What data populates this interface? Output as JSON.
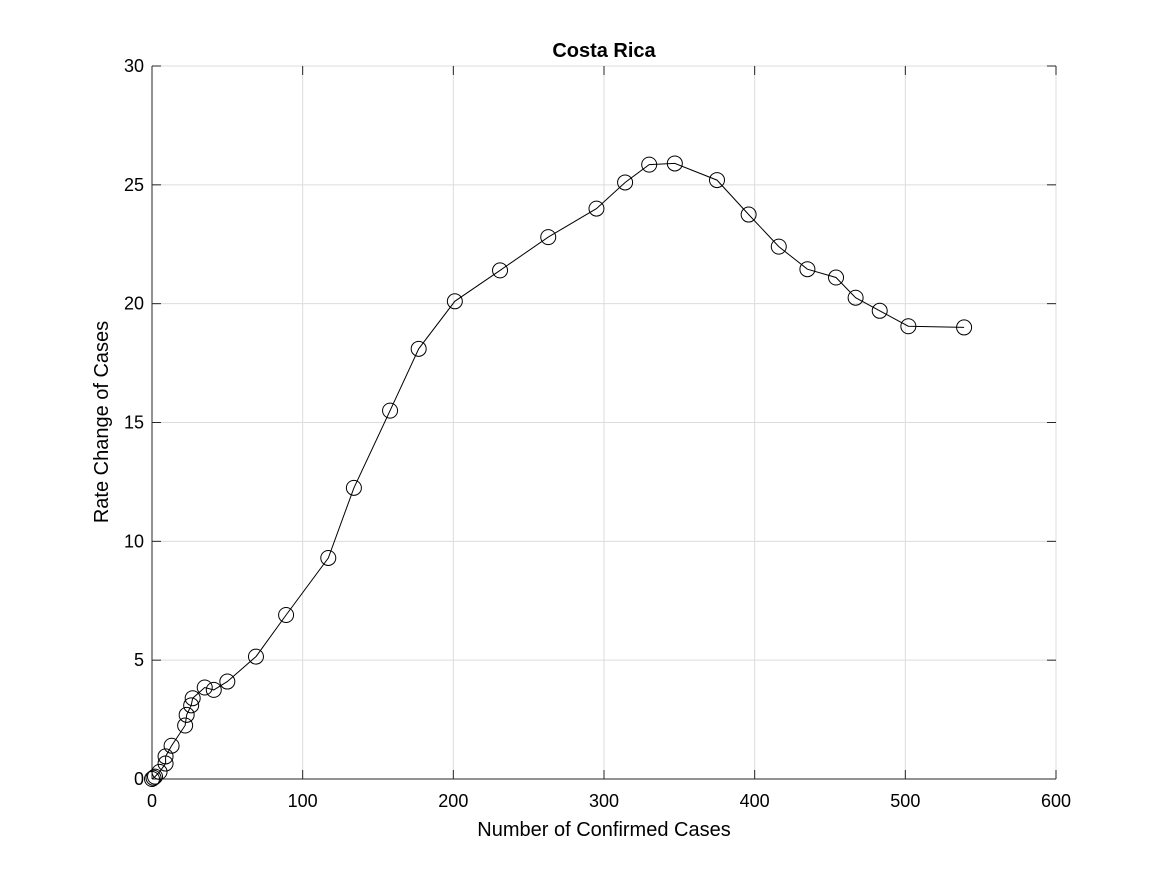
{
  "chart_data": {
    "type": "line",
    "title": "Costa Rica",
    "xlabel": "Number of Confirmed Cases",
    "ylabel": "Rate Change of Cases",
    "xlim": [
      0,
      600
    ],
    "ylim": [
      0,
      30
    ],
    "xticks": [
      0,
      100,
      200,
      300,
      400,
      500,
      600
    ],
    "yticks": [
      0,
      5,
      10,
      15,
      20,
      25,
      30
    ],
    "grid": true,
    "marker": "circle",
    "line_color": "#000000",
    "series": [
      {
        "x": [
          0,
          1,
          2,
          5,
          9,
          9,
          13,
          22,
          23,
          26,
          27,
          35,
          41,
          50,
          69,
          89,
          117,
          134,
          158,
          177,
          201,
          231,
          263,
          295,
          314,
          330,
          347,
          375,
          396,
          416,
          435,
          454,
          467,
          483,
          502,
          539
        ],
        "y": [
          0,
          0.05,
          0.1,
          0.3,
          0.65,
          0.95,
          1.4,
          2.25,
          2.7,
          3.1,
          3.4,
          3.85,
          3.75,
          4.1,
          5.15,
          6.9,
          9.3,
          12.25,
          15.5,
          18.1,
          20.1,
          21.4,
          22.8,
          24.0,
          25.1,
          25.85,
          25.9,
          25.2,
          23.75,
          22.4,
          21.45,
          21.1,
          20.25,
          19.7,
          19.05,
          19.0
        ]
      }
    ]
  }
}
